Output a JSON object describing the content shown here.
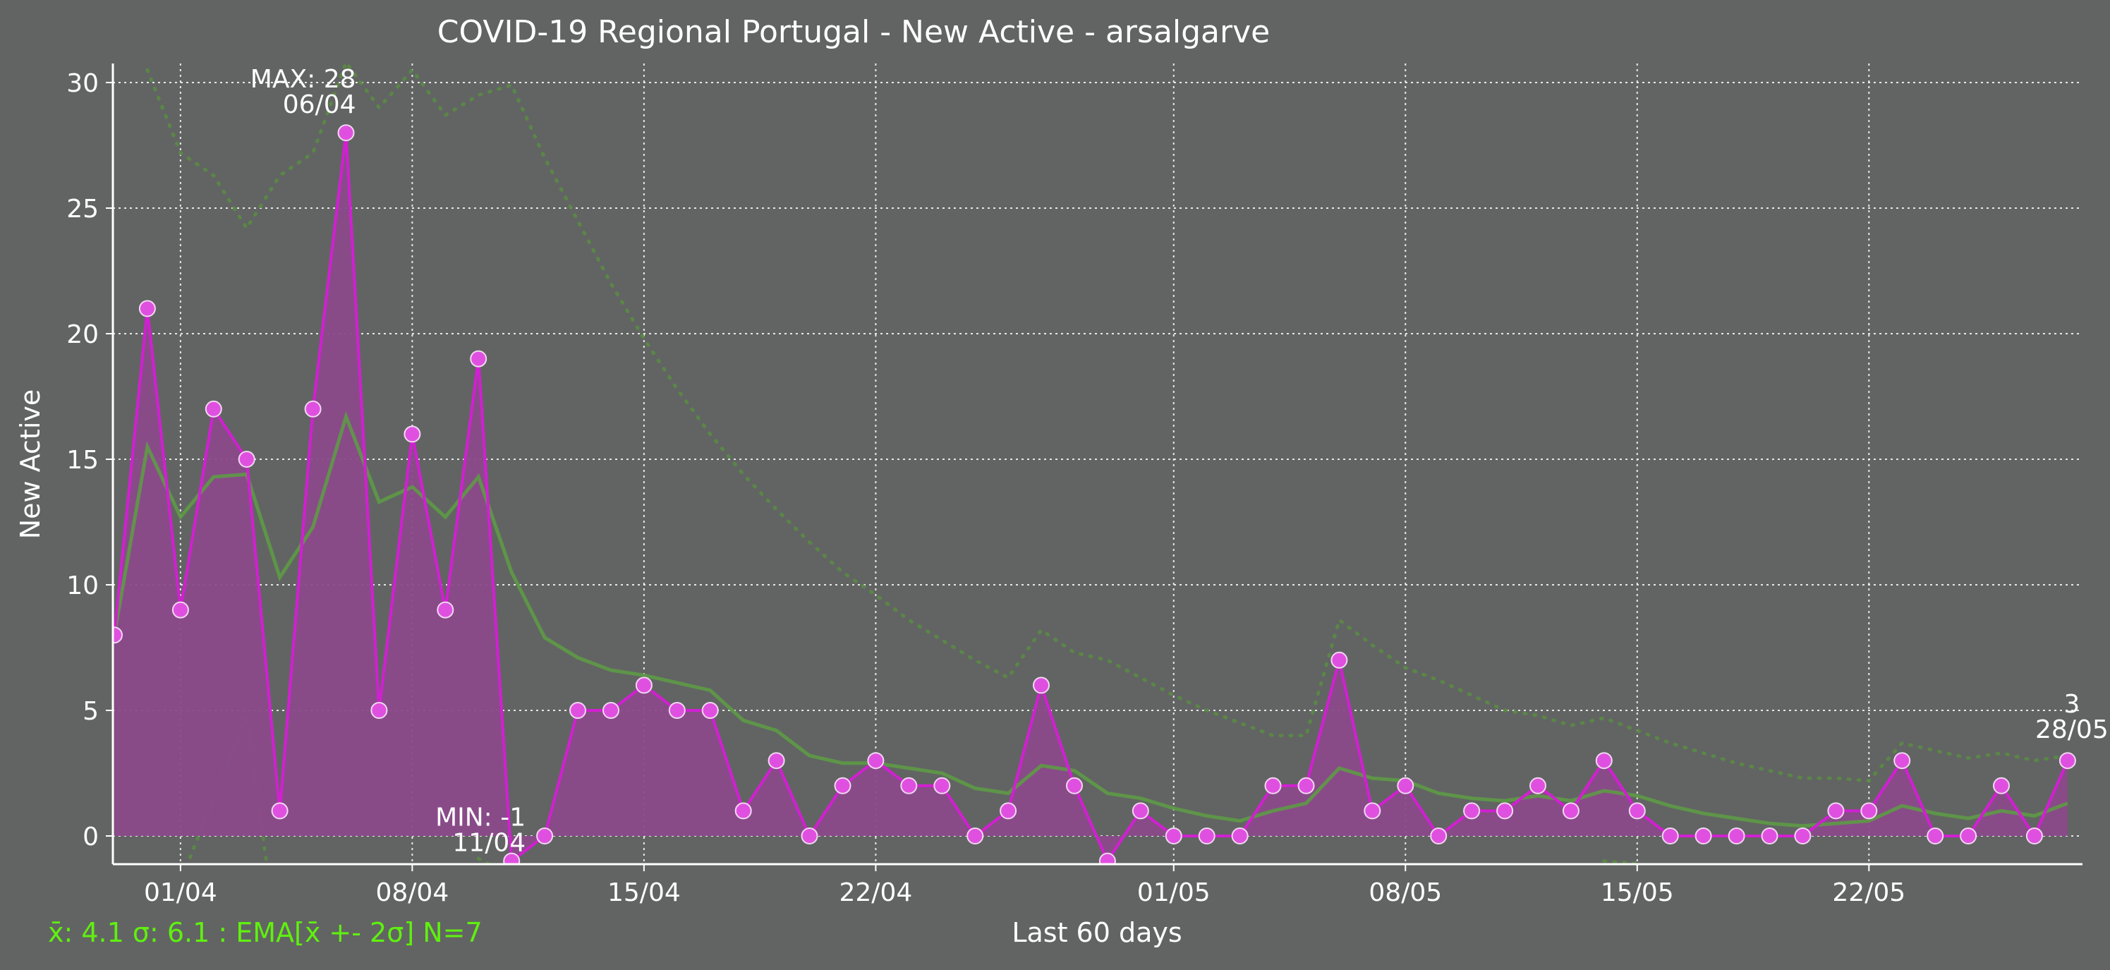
{
  "chart_data": {
    "type": "line",
    "title": "COVID-19 Regional Portugal - New Active - arsalgarve",
    "xlabel": "Last 60 days",
    "ylabel": "New Active",
    "ylim": [
      -1,
      30.8
    ],
    "yticks": [
      0,
      5,
      10,
      15,
      20,
      25,
      30
    ],
    "x_start": "30/03",
    "xtick_labels": [
      "01/04",
      "08/04",
      "15/04",
      "22/04",
      "01/05",
      "08/05",
      "15/05",
      "22/05"
    ],
    "xtick_days": [
      2,
      9,
      16,
      23,
      32,
      39,
      46,
      53
    ],
    "series": [
      {
        "values": [
          8,
          21,
          9,
          17,
          15,
          1,
          17,
          28,
          5,
          16,
          9,
          19,
          -1,
          0,
          5,
          5,
          6,
          5,
          5,
          1,
          3,
          0,
          2,
          3,
          2,
          2,
          0,
          1,
          6,
          2,
          -1,
          1,
          0,
          0,
          0,
          2,
          2,
          7,
          1,
          2,
          0,
          1,
          1,
          2,
          1,
          3,
          1,
          0,
          0,
          0,
          0,
          0,
          1,
          1,
          3,
          0,
          0,
          2,
          0,
          3
        ]
      }
    ],
    "ema": [
      8,
      15.5,
      12.7,
      14.3,
      14.4,
      10.3,
      12.3,
      16.7,
      13.3,
      13.9,
      12.7,
      14.3,
      10.5,
      7.9,
      7.1,
      6.6,
      6.4,
      6.1,
      5.8,
      4.6,
      4.2,
      3.2,
      2.9,
      2.9,
      2.7,
      2.5,
      1.9,
      1.7,
      2.8,
      2.6,
      1.7,
      1.5,
      1.1,
      0.8,
      0.6,
      1,
      1.3,
      2.7,
      2.3,
      2.2,
      1.7,
      1.5,
      1.4,
      1.6,
      1.4,
      1.8,
      1.6,
      1.2,
      0.9,
      0.7,
      0.5,
      0.4,
      0.5,
      0.6,
      1.2,
      0.9,
      0.7,
      1,
      0.8,
      1.3
    ],
    "ema_upper": [
      null,
      30.5,
      27.2,
      26.3,
      24.2,
      26.3,
      27.2,
      30.8,
      29,
      30.5,
      28.7,
      29.5,
      29.9,
      27,
      24.5,
      22,
      19.8,
      17.8,
      16,
      14.4,
      13,
      11.7,
      10.5,
      9.6,
      8.6,
      7.8,
      7,
      6.3,
      8.2,
      7.3,
      7,
      6.3,
      5.6,
      5,
      4.5,
      4,
      4,
      8.6,
      7.6,
      6.7,
      6.2,
      5.6,
      5,
      4.8,
      4.4,
      4.7,
      4.2,
      3.7,
      3.3,
      2.9,
      2.6,
      2.3,
      2.3,
      2.2,
      3.7,
      3.4,
      3.1,
      3.3,
      3,
      3.2
    ],
    "ema_lower": [
      null,
      -2,
      -1.8,
      1.5,
      4.8,
      -5,
      null,
      null,
      null,
      null,
      null,
      -0.9,
      -1.6,
      null,
      null,
      null,
      null,
      null,
      null,
      null,
      null,
      null,
      null,
      null,
      null,
      null,
      null,
      null,
      null,
      null,
      null,
      null,
      null,
      null,
      null,
      null,
      null,
      null,
      null,
      null,
      null,
      null,
      null,
      null,
      null,
      -1,
      -1.1,
      -1.3,
      -1.5,
      null,
      null,
      null,
      null,
      -1.2,
      null,
      null,
      null,
      null,
      null,
      null
    ],
    "annotations": {
      "max": {
        "label": "MAX: 28",
        "date": "06/04",
        "index": 7
      },
      "min": {
        "label": "MIN: -1",
        "date": "11/04",
        "index": 12
      },
      "last": {
        "label": "3",
        "date": "28/05",
        "index": 59
      }
    },
    "stats_text": "x̄: 4.1 σ: 6.1 : EMA[x̄ +- 2σ] N=7",
    "grid": true,
    "colors": {
      "background": "#626463",
      "line": "#d21fd2",
      "fill": "#8a4a8a",
      "marker": "#e050e0",
      "ema": "#5e9a46",
      "band": "#5a8a44",
      "stats": "#5ff00f",
      "text": "#ffffff"
    }
  }
}
